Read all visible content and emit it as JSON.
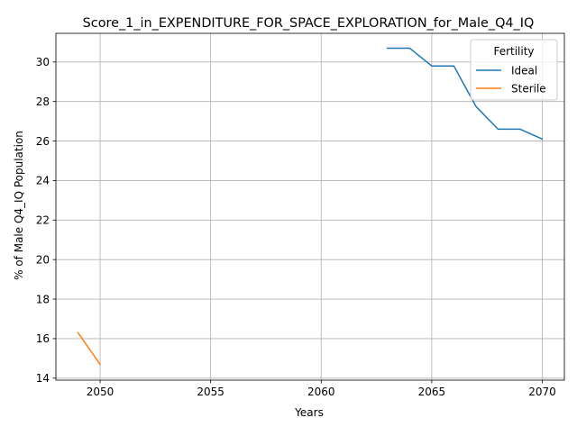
{
  "chart_data": {
    "type": "line",
    "title": "Score_1_in_EXPENDITURE_FOR_SPACE_EXPLORATION_for_Male_Q4_IQ",
    "xlabel": "Years",
    "ylabel": "% of Male Q4_IQ Population",
    "xlim": [
      2048,
      2071
    ],
    "ylim": [
      13.9,
      31.45
    ],
    "xticks": [
      2050,
      2055,
      2060,
      2065,
      2070
    ],
    "yticks": [
      14,
      16,
      18,
      20,
      22,
      24,
      26,
      28,
      30
    ],
    "grid": true,
    "legend": {
      "title": "Fertility",
      "placement": "top-right"
    },
    "series": [
      {
        "name": "Ideal",
        "color": "#1f77b4",
        "x": [
          2063,
          2064,
          2065,
          2066,
          2067,
          2068,
          2069,
          2070
        ],
        "y": [
          30.7,
          30.7,
          29.8,
          29.8,
          27.75,
          26.6,
          26.6,
          26.1
        ]
      },
      {
        "name": "Sterile",
        "color": "#ff7f0e",
        "x": [
          2049,
          2050
        ],
        "y": [
          16.3,
          14.7
        ]
      }
    ]
  }
}
